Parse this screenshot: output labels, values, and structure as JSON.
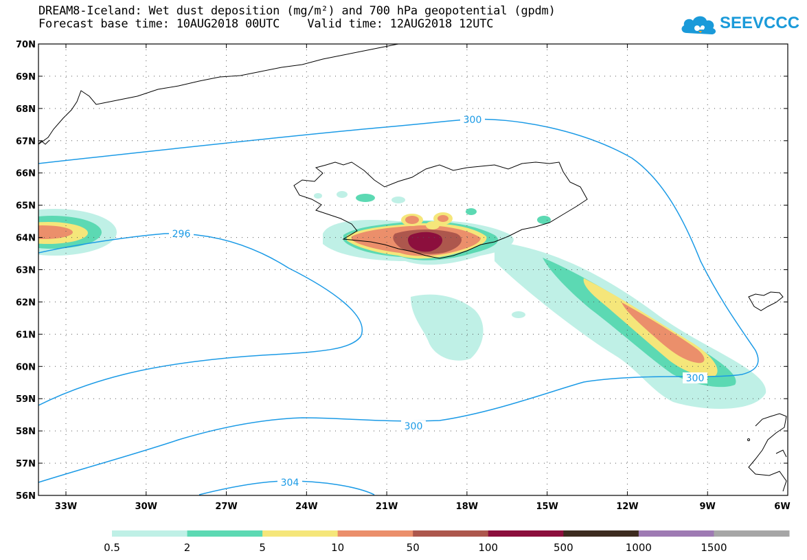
{
  "header": {
    "title_line1": "DREAM8-Iceland: Wet dust deposition (mg/m²) and 700 hPa geopotential (gpdm)",
    "title_line2": "Forecast base time: 10AUG2018 00UTC    Valid time: 12AUG2018 12UTC"
  },
  "logo": {
    "text": "SEEVCCC",
    "icon": "cloud-icon",
    "color": "#1a9ad9"
  },
  "map": {
    "lat_labels": [
      "70N",
      "69N",
      "68N",
      "67N",
      "66N",
      "65N",
      "64N",
      "63N",
      "62N",
      "61N",
      "60N",
      "59N",
      "58N",
      "57N",
      "56N"
    ],
    "lon_labels": [
      "33W",
      "30W",
      "27W",
      "24W",
      "21W",
      "18W",
      "15W",
      "12W",
      "9W",
      "6W"
    ],
    "contour_labels": [
      "300",
      "296",
      "300",
      "300",
      "304"
    ],
    "contour_color": "#1a9ae6"
  },
  "legend": {
    "colors": [
      "#bff0e6",
      "#5cd9b3",
      "#f5e67a",
      "#eb8f6b",
      "#ad574d",
      "#8c0f3d",
      "#3d2b1f",
      "#9e7ab3",
      "#a6a6a6"
    ],
    "labels": [
      "0.5",
      "2",
      "5",
      "10",
      "50",
      "100",
      "500",
      "1000",
      "1500"
    ]
  }
}
